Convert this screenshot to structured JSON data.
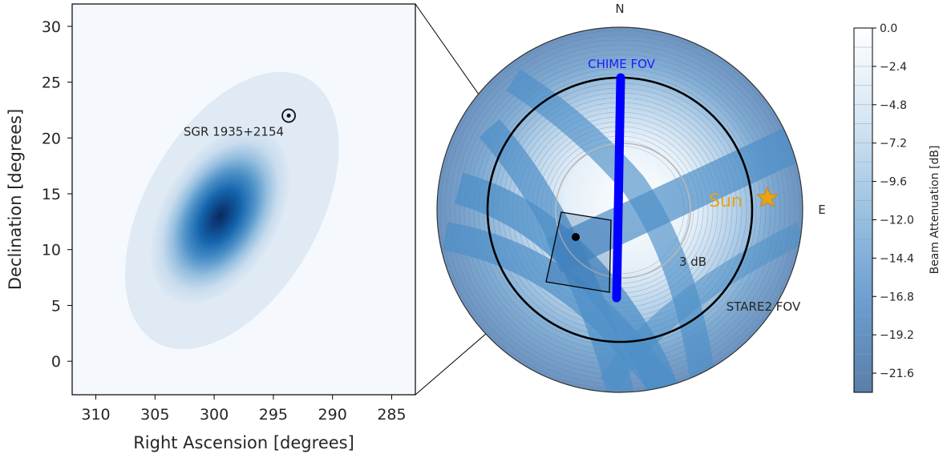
{
  "chart_data": [
    {
      "type": "heatmap",
      "xlabel": "Right Ascension [degrees]",
      "ylabel": "Declination [degrees]",
      "xlim": [
        312,
        283
      ],
      "ylim": [
        -3,
        32
      ],
      "xticks": [
        310,
        305,
        300,
        295,
        290,
        285
      ],
      "yticks": [
        0,
        5,
        10,
        15,
        20,
        25,
        30
      ],
      "colormap": "Blues",
      "peak": {
        "ra": 299.5,
        "dec": 13.0
      },
      "ellipse_extent": {
        "ra": [
          307,
          290
        ],
        "dec": [
          1,
          26
        ]
      },
      "source": {
        "label": "SGR 1935+2154",
        "ra": 293.7,
        "dec": 22.0
      }
    },
    {
      "type": "heatmap",
      "projection": "polar",
      "compass": {
        "north": "N",
        "east": "E"
      },
      "labels": {
        "chime_fov": "CHIME FOV",
        "stare2_fov": "STARE2 FOV",
        "contour_3db": "3 dB",
        "sun": "Sun"
      },
      "colors": {
        "chime_track": "#0000ff",
        "sun": "#e8a317",
        "chime_label": "#1a1aff"
      },
      "colorbar": {
        "label": "Beam Attenuation [dB]",
        "range": [
          -22.8,
          0.0
        ],
        "ticks": [
          "0.0",
          "−2.4",
          "−4.8",
          "−7.2",
          "−9.6",
          "−12.0",
          "−14.4",
          "−16.8",
          "−19.2",
          "−21.6"
        ]
      }
    }
  ]
}
